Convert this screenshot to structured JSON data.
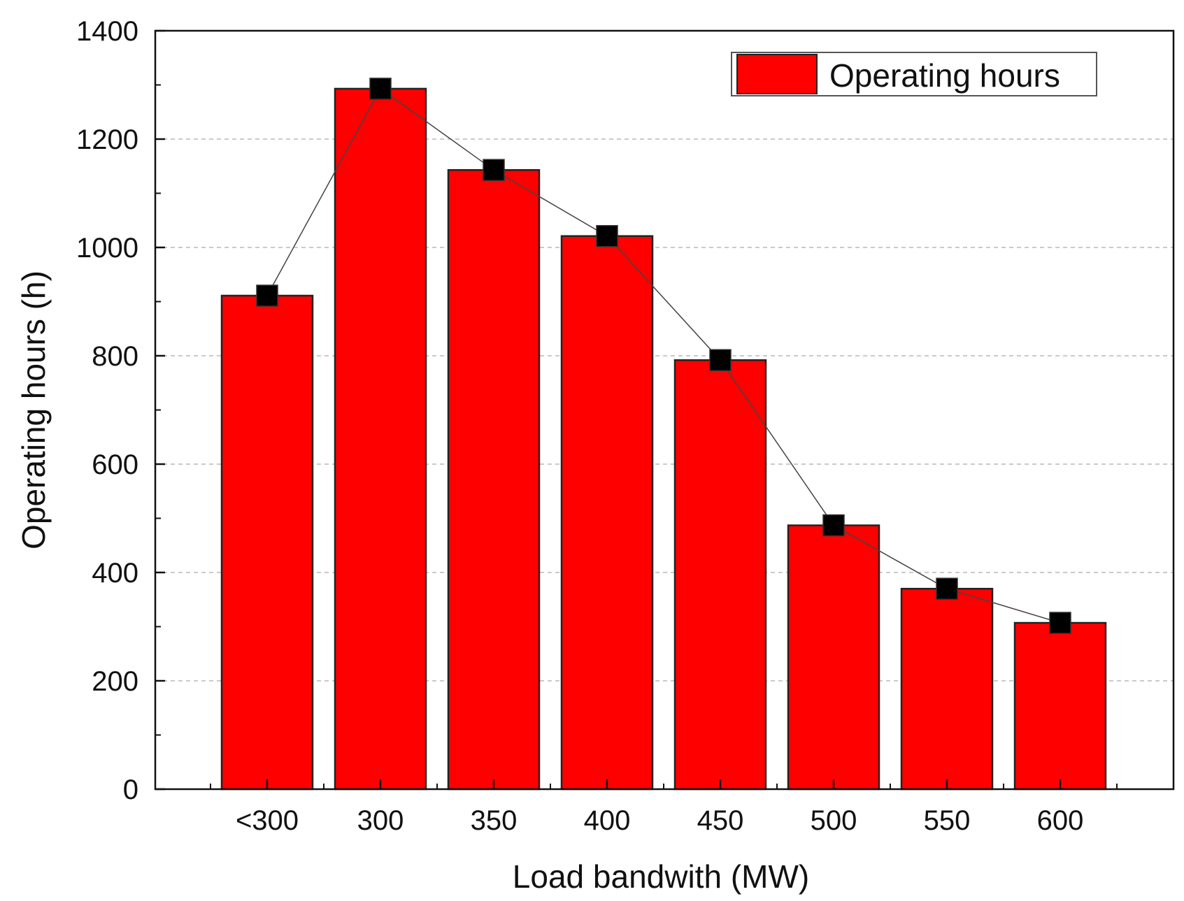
{
  "chart_data": {
    "type": "bar",
    "title": "",
    "xlabel": "Load bandwith (MW)",
    "ylabel": "Operating hours (h)",
    "categories": [
      "<300",
      "300",
      "350",
      "400",
      "450",
      "500",
      "550",
      "600"
    ],
    "series": [
      {
        "name": "Operating hours",
        "values": [
          911,
          1293,
          1143,
          1021,
          792,
          487,
          370,
          307
        ],
        "color": "#ff0000",
        "edge_color": "#222222",
        "marker_color": "#000000",
        "marker": "square",
        "connector_line": true
      }
    ],
    "ylim": [
      0,
      1400
    ],
    "yticks": [
      0,
      200,
      400,
      600,
      800,
      1000,
      1200,
      1400
    ],
    "grid": "horizontal-dashed",
    "legend": {
      "entries": [
        "Operating hours"
      ],
      "placement": "top-right"
    }
  }
}
